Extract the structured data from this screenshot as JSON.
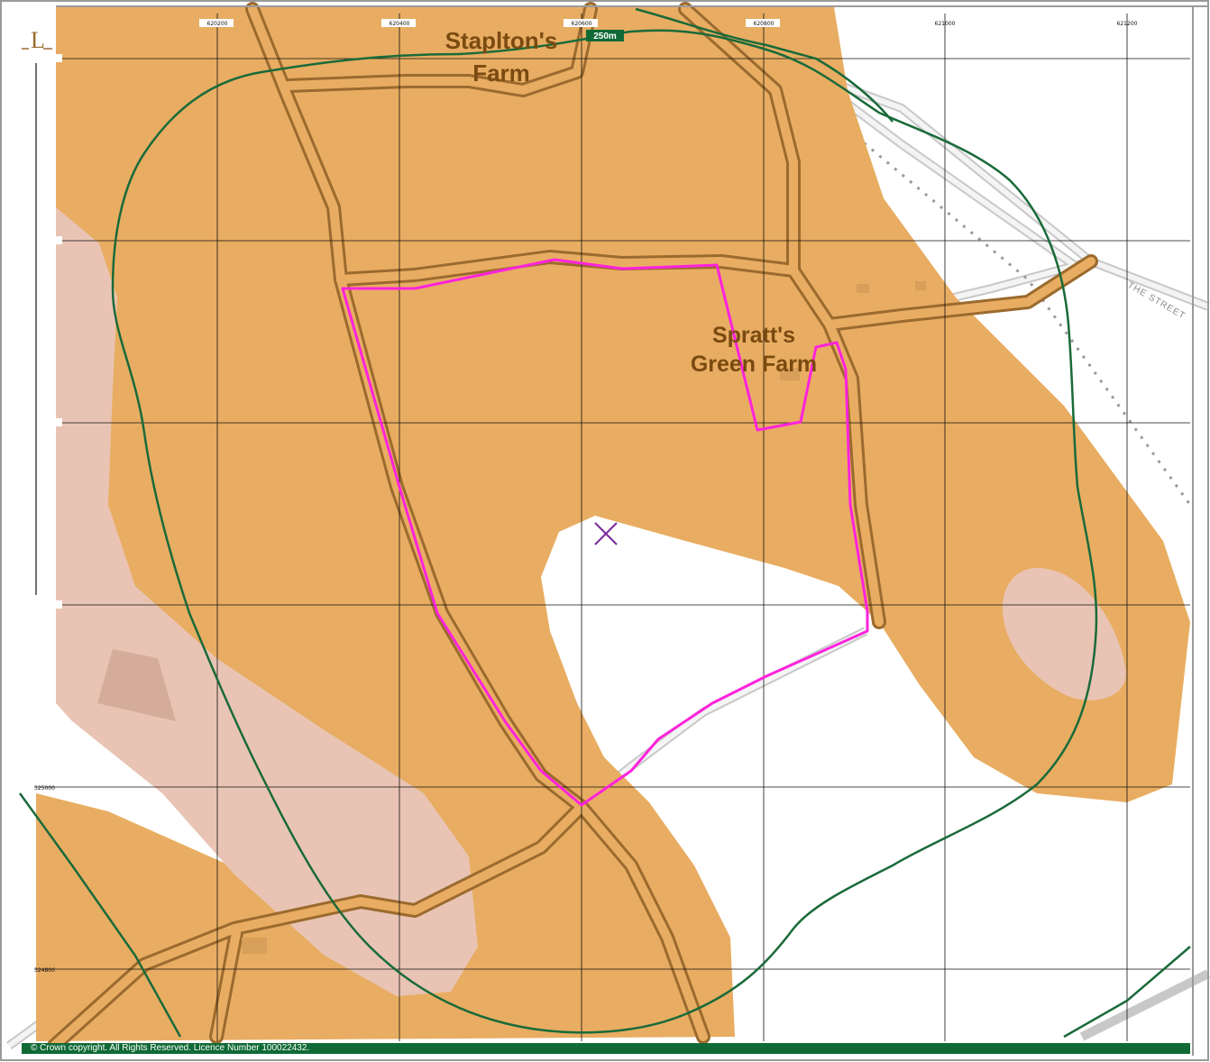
{
  "places": {
    "staplton_line1": "Staplton's",
    "staplton_line2": "Farm",
    "spratt_line1": "Spratt's",
    "spratt_line2": "Green Farm"
  },
  "road_label": "THE STREET",
  "scale_bar": "250m",
  "corner_mark": "L",
  "grid_labels_top": [
    "620200",
    "620400",
    "620600",
    "620800",
    "621000",
    "621200"
  ],
  "grid_labels_left": [
    "325000",
    "324800"
  ],
  "copyright": "© Crown copyright. All Rights Reserved. Licence Number 100022432.",
  "colors": {
    "zone_orange": "#e8ad62",
    "zone_pink": "#e9c4b4",
    "boundary_magenta": "#ff22dd",
    "buffer_green": "#1a6a3a",
    "road_brown": "#9b6a2e",
    "banner_green": "#0f6a35",
    "marker_purple": "#7a2a9a"
  }
}
